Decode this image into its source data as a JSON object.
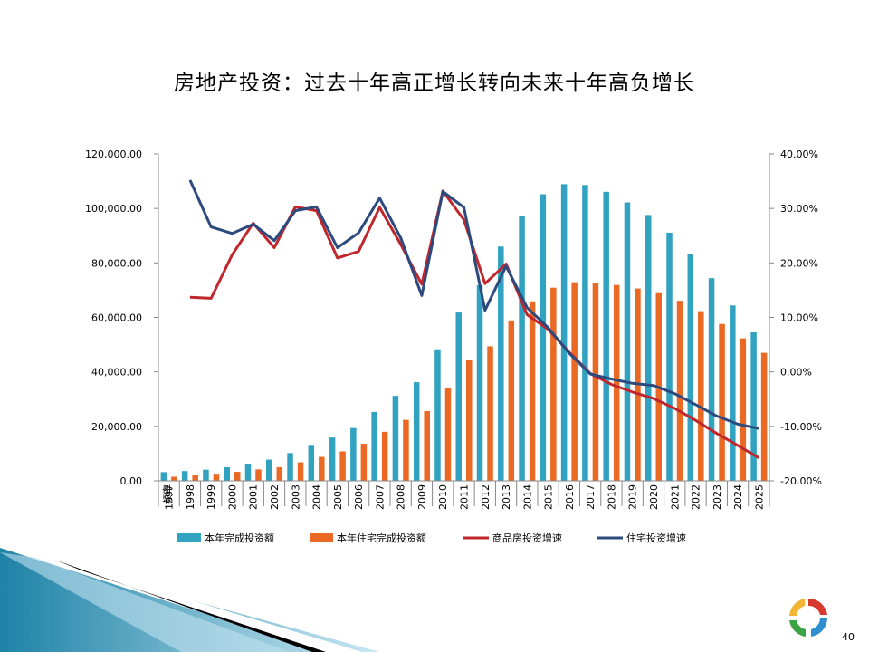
{
  "page": {
    "number": "40"
  },
  "chart_data": {
    "type": "bar",
    "title": "房地产投资：过去十年高正增长转向未来十年高负增长",
    "x_axis_label": "频率",
    "categories": [
      "1997",
      "1998",
      "1999",
      "2000",
      "2001",
      "2002",
      "2003",
      "2004",
      "2005",
      "2006",
      "2007",
      "2008",
      "2009",
      "2010",
      "2011",
      "2012",
      "2013",
      "2014",
      "2015",
      "2016",
      "2017",
      "2018",
      "2019",
      "2020",
      "2021",
      "2022",
      "2023",
      "2024",
      "2025"
    ],
    "y_left": {
      "ylim": [
        0,
        120000
      ],
      "ticks": [
        "0.00",
        "20,000.00",
        "40,000.00",
        "60,000.00",
        "80,000.00",
        "100,000.00",
        "120,000.00"
      ]
    },
    "y_right": {
      "ylim": [
        -20,
        40
      ],
      "ticks": [
        "-20.00%",
        "-10.00%",
        "0.00%",
        "10.00%",
        "20.00%",
        "30.00%",
        "40.00%"
      ]
    },
    "series": [
      {
        "name": "本年完成投资额",
        "type": "bar",
        "axis": "left",
        "color": "#31a3c0",
        "values": [
          3200,
          3600,
          4100,
          5000,
          6300,
          7800,
          10200,
          13200,
          15900,
          19400,
          25300,
          31200,
          36200,
          48300,
          61800,
          71800,
          86000,
          97100,
          105200,
          108900,
          108600,
          106100,
          102200,
          97600,
          91100,
          83400,
          74400,
          64400,
          54500
        ]
      },
      {
        "name": "本年住宅完成投资额",
        "type": "bar",
        "axis": "left",
        "color": "#ea6a25",
        "values": [
          1500,
          2100,
          2600,
          3300,
          4200,
          5000,
          6800,
          8800,
          10800,
          13600,
          18000,
          22400,
          25600,
          34100,
          44300,
          49400,
          58900,
          65900,
          70900,
          72900,
          72500,
          71900,
          70600,
          68900,
          66100,
          62300,
          57600,
          52300,
          47000
        ]
      },
      {
        "name": "商品房投资增速",
        "type": "line",
        "axis": "right",
        "color": "#c0272d",
        "values": [
          null,
          13.7,
          13.5,
          21.5,
          27.3,
          22.8,
          30.3,
          29.6,
          20.9,
          22.1,
          30.2,
          23.4,
          16.1,
          33.2,
          27.9,
          16.2,
          19.8,
          10.5,
          7.8,
          3.6,
          -0.3,
          -2.3,
          -3.7,
          -4.9,
          -6.7,
          -8.9,
          -11.3,
          -13.5,
          -15.8
        ]
      },
      {
        "name": "住宅投资增速",
        "type": "line",
        "axis": "right",
        "color": "#2d4a7e",
        "values": [
          null,
          35.2,
          26.6,
          25.4,
          27.1,
          24.1,
          29.6,
          30.3,
          22.8,
          25.5,
          31.9,
          24.6,
          14.0,
          33.1,
          30.2,
          11.3,
          19.4,
          11.8,
          8.1,
          3.4,
          -0.4,
          -1.3,
          -2.1,
          -2.5,
          -4.0,
          -6.0,
          -8.1,
          -9.6,
          -10.4
        ]
      }
    ],
    "legend": "bottom"
  },
  "logo": {
    "description_colors": [
      "#d63a2f",
      "#f2b632",
      "#3aa445",
      "#2f8fcf"
    ]
  }
}
